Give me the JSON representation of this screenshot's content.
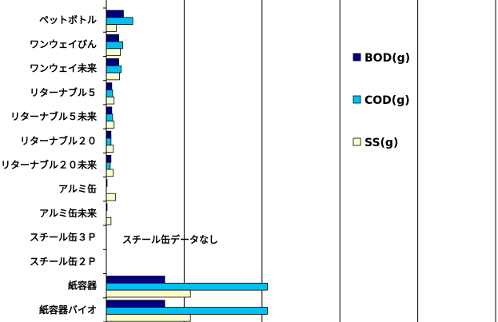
{
  "chart_data": {
    "type": "bar",
    "orientation": "horizontal",
    "title": "",
    "xlabel": "",
    "ylabel": "",
    "xlim": [
      0,
      500
    ],
    "grid": true,
    "legend_position": "right",
    "categories": [
      "ペットボトル",
      "ワンウェイびん",
      "ワンウェイ未来",
      "リターナブル５",
      "リターナブル５未来",
      "リターナブル２０",
      "リターナブル２０未来",
      "アルミ缶",
      "アルミ缶未来",
      "スチール缶３Ｐ",
      "スチール缶２Ｐ",
      "紙容器",
      "紙容器バイオ"
    ],
    "series": [
      {
        "name": "BOD(g)",
        "color": "#000080",
        "values": [
          22,
          16,
          16,
          7,
          7,
          6,
          6,
          1,
          1,
          null,
          null,
          75,
          75
        ]
      },
      {
        "name": "COD(g)",
        "color": "#00c0f0",
        "values": [
          34,
          21,
          19,
          8,
          8,
          6,
          5,
          0,
          0,
          null,
          null,
          207,
          207
        ]
      },
      {
        "name": "SS(g)",
        "color": "#ffffcc",
        "values": [
          13,
          18,
          17,
          10,
          10,
          9,
          9,
          12,
          6,
          null,
          null,
          108,
          108
        ]
      }
    ],
    "annotations": [
      {
        "text": "スチール缶データなし"
      }
    ]
  }
}
